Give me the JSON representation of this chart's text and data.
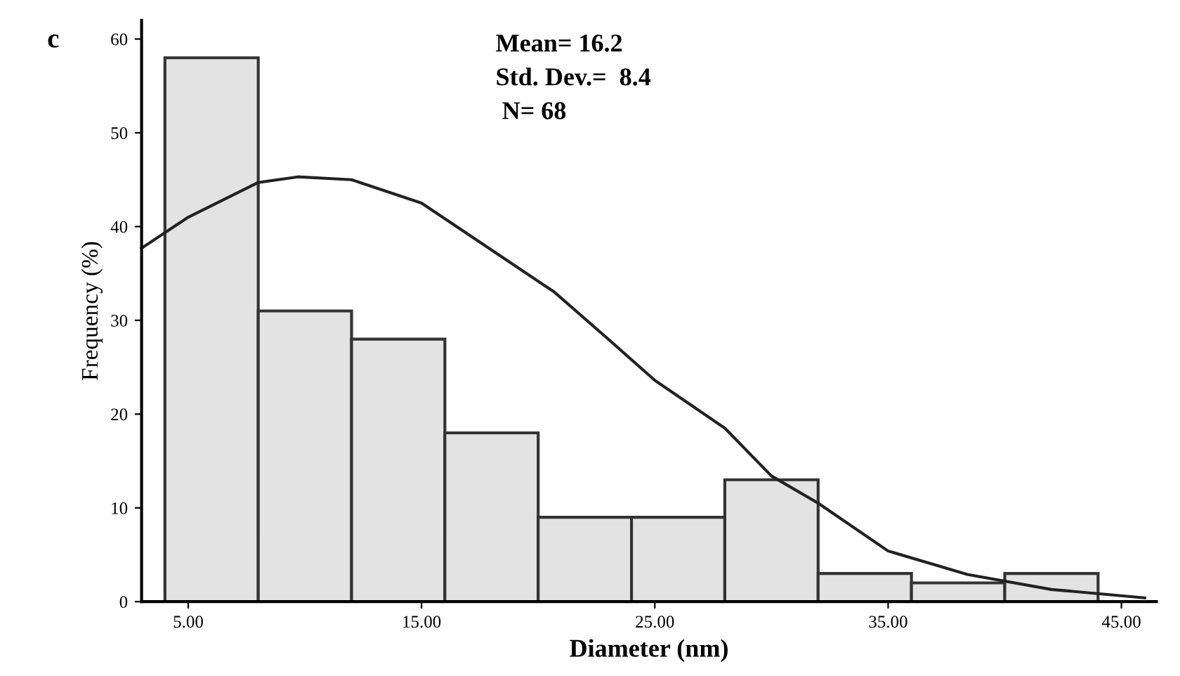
{
  "chart_data": {
    "type": "histogram",
    "title": "c",
    "xlabel": "Diameter (nm)",
    "ylabel": "Frequency (%)",
    "bins": [
      4,
      8,
      12,
      16,
      20,
      24,
      28,
      32,
      36,
      40,
      44
    ],
    "values": [
      58,
      31,
      28,
      18,
      9,
      9,
      13,
      3,
      2,
      3
    ],
    "color": "#e3e3e3",
    "series": [
      {
        "type": "line",
        "color": "#222222",
        "x": [
          3,
          5,
          8,
          9.7,
          12,
          15,
          18,
          20.7,
          23,
          25,
          28,
          30,
          32,
          35,
          38.4,
          42,
          46
        ],
        "values": [
          37.7,
          41,
          44.7,
          45.3,
          45,
          42.5,
          37.5,
          33,
          28,
          23.6,
          18.5,
          13.4,
          10.5,
          5.4,
          2.9,
          1.3,
          0.4
        ]
      }
    ],
    "annotations": [
      "Mean= 16.2",
      "Std. Dev.=  8.4",
      " N= 68"
    ],
    "xlim": [
      3,
      46.5
    ],
    "ylim": [
      0,
      62
    ],
    "xticks": [
      {
        "value": 5,
        "label": "5.00"
      },
      {
        "value": 15,
        "label": "15.00"
      },
      {
        "value": 25,
        "label": "25.00"
      },
      {
        "value": 35,
        "label": "35.00"
      },
      {
        "value": 45,
        "label": "45.00"
      }
    ],
    "yticks": [
      0,
      10,
      20,
      30,
      40,
      50,
      60
    ],
    "grid": false
  }
}
